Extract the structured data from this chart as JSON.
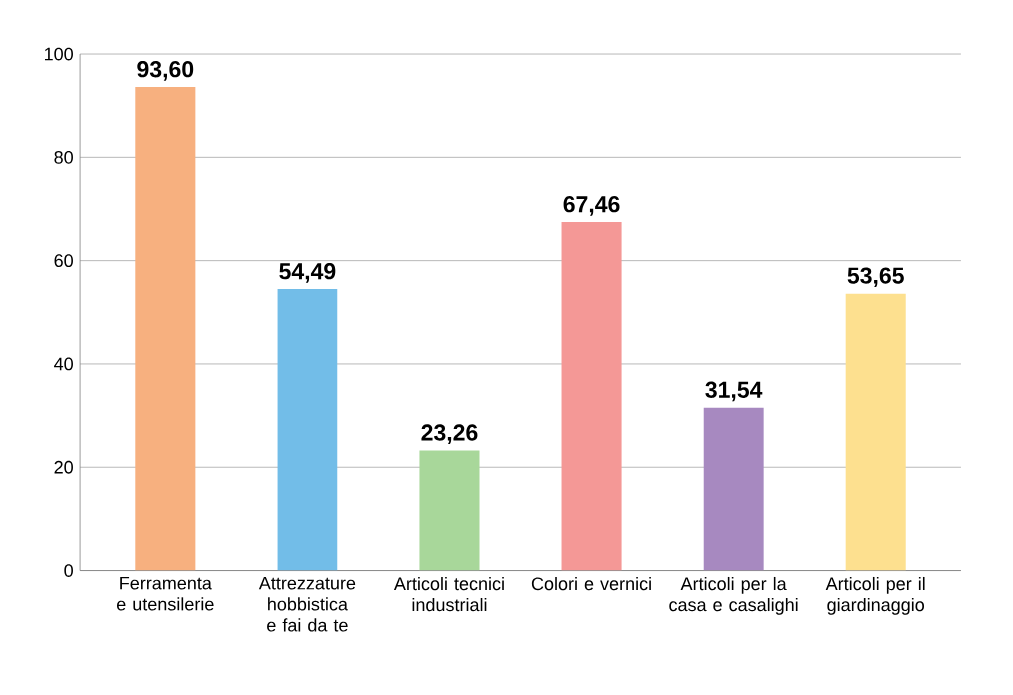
{
  "chart_data": {
    "type": "bar",
    "categories": [
      "Ferramenta e utensilerie",
      "Attrezzature hobbistica e fai da te",
      "Articoli tecnici industriali",
      "Colori e vernici",
      "Articoli per la casa e casalighi",
      "Articoli per il giardinaggio"
    ],
    "values": [
      93.6,
      54.49,
      23.26,
      67.46,
      31.54,
      53.65
    ],
    "value_labels": [
      "93,60",
      "54,49",
      "23,26",
      "67,46",
      "31,54",
      "53,65"
    ],
    "colors": [
      "#f7b07f",
      "#72bde8",
      "#a8d79a",
      "#f49896",
      "#a789c0",
      "#fde08f"
    ],
    "ylim": [
      0,
      100
    ],
    "yticks": [
      0,
      20,
      40,
      60,
      80,
      100
    ],
    "grid": "y"
  }
}
